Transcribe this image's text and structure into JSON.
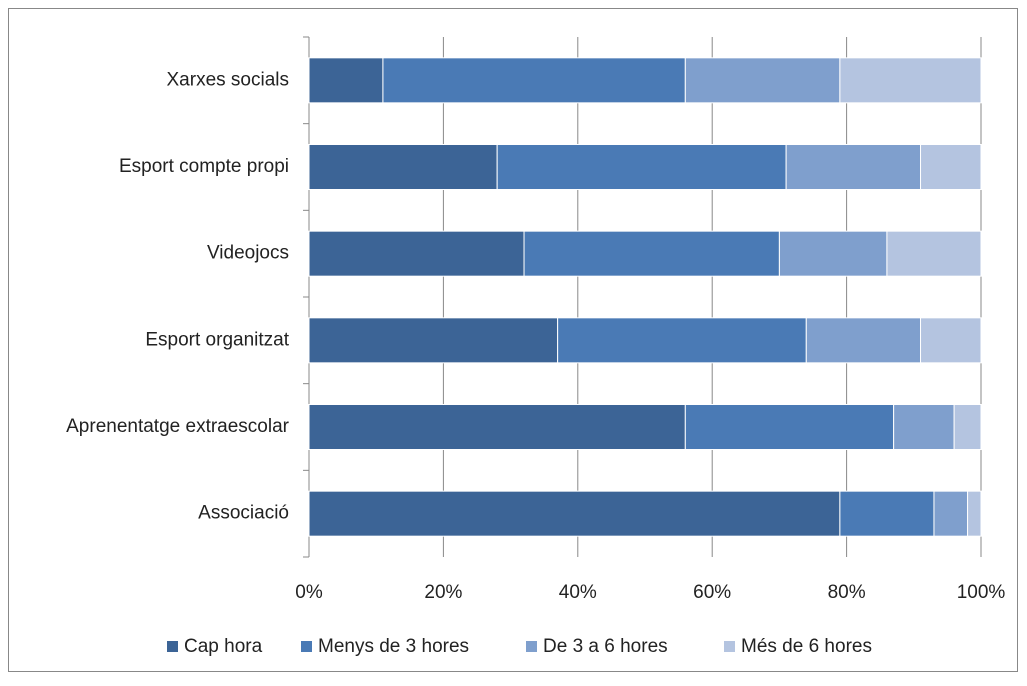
{
  "chart_data": {
    "type": "bar",
    "orientation": "horizontal",
    "stacked": true,
    "categories": [
      "Xarxes socials",
      "Esport compte propi",
      "Videojocs",
      "Esport organitzat",
      "Aprenentatge extraescolar",
      "Associació"
    ],
    "series": [
      {
        "name": "Cap hora",
        "color": "#3c6496",
        "values": [
          11,
          28,
          32,
          37,
          56,
          79
        ]
      },
      {
        "name": "Menys de 3 hores",
        "color": "#4a7ab5",
        "values": [
          45,
          43,
          38,
          37,
          31,
          14
        ]
      },
      {
        "name": "De 3 a 6 hores",
        "color": "#7f9fcd",
        "values": [
          23,
          20,
          16,
          17,
          9,
          5
        ]
      },
      {
        "name": "Més de 6 hores",
        "color": "#b4c4e0",
        "values": [
          21,
          9,
          14,
          9,
          4,
          2
        ]
      }
    ],
    "xlim": [
      0,
      100
    ],
    "xticks": [
      {
        "value": 0,
        "label": "0%"
      },
      {
        "value": 20,
        "label": "20%"
      },
      {
        "value": 40,
        "label": "40%"
      },
      {
        "value": 60,
        "label": "60%"
      },
      {
        "value": 80,
        "label": "80%"
      },
      {
        "value": 100,
        "label": "100%"
      }
    ],
    "grid": true,
    "legend": "bottom"
  }
}
